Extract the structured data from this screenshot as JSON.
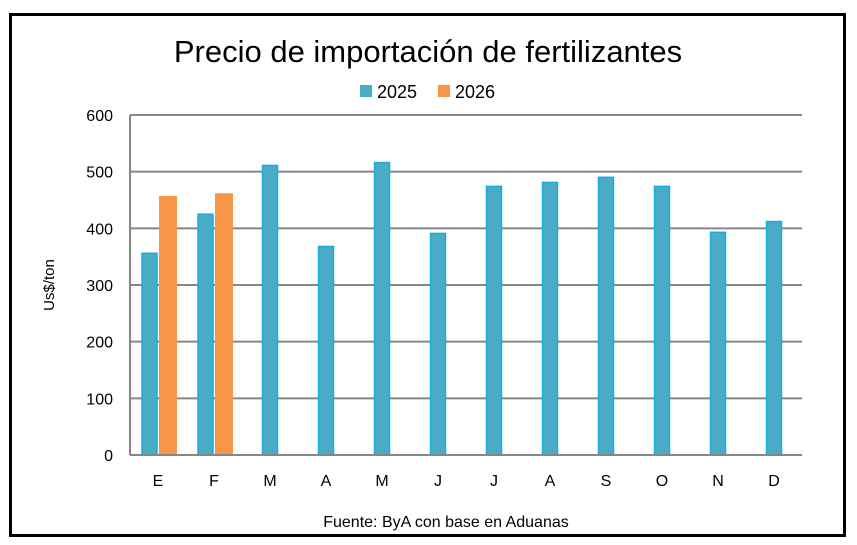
{
  "chart_data": {
    "type": "bar",
    "title": "Precio de importación de fertilizantes",
    "xlabel": "",
    "ylabel": "Us$/ton",
    "ylim": [
      0,
      600
    ],
    "yticks": [
      0,
      100,
      200,
      300,
      400,
      500,
      600
    ],
    "grid": true,
    "legend_position": "top-center",
    "categories": [
      "E",
      "F",
      "M",
      "A",
      "M",
      "J",
      "J",
      "A",
      "S",
      "O",
      "N",
      "D"
    ],
    "series": [
      {
        "name": "2025",
        "color": "#4BACC6",
        "values": [
          356,
          425,
          511,
          368,
          516,
          391,
          474,
          481,
          490,
          474,
          393,
          412
        ]
      },
      {
        "name": "2026",
        "color": "#F79646",
        "values": [
          457,
          462,
          null,
          null,
          null,
          null,
          null,
          null,
          null,
          null,
          null,
          null
        ]
      }
    ],
    "footer": "Fuente: ByA con base en Aduanas"
  },
  "colors": {
    "bar_2025_border": "#1AAAE0",
    "grid": "#868686"
  }
}
